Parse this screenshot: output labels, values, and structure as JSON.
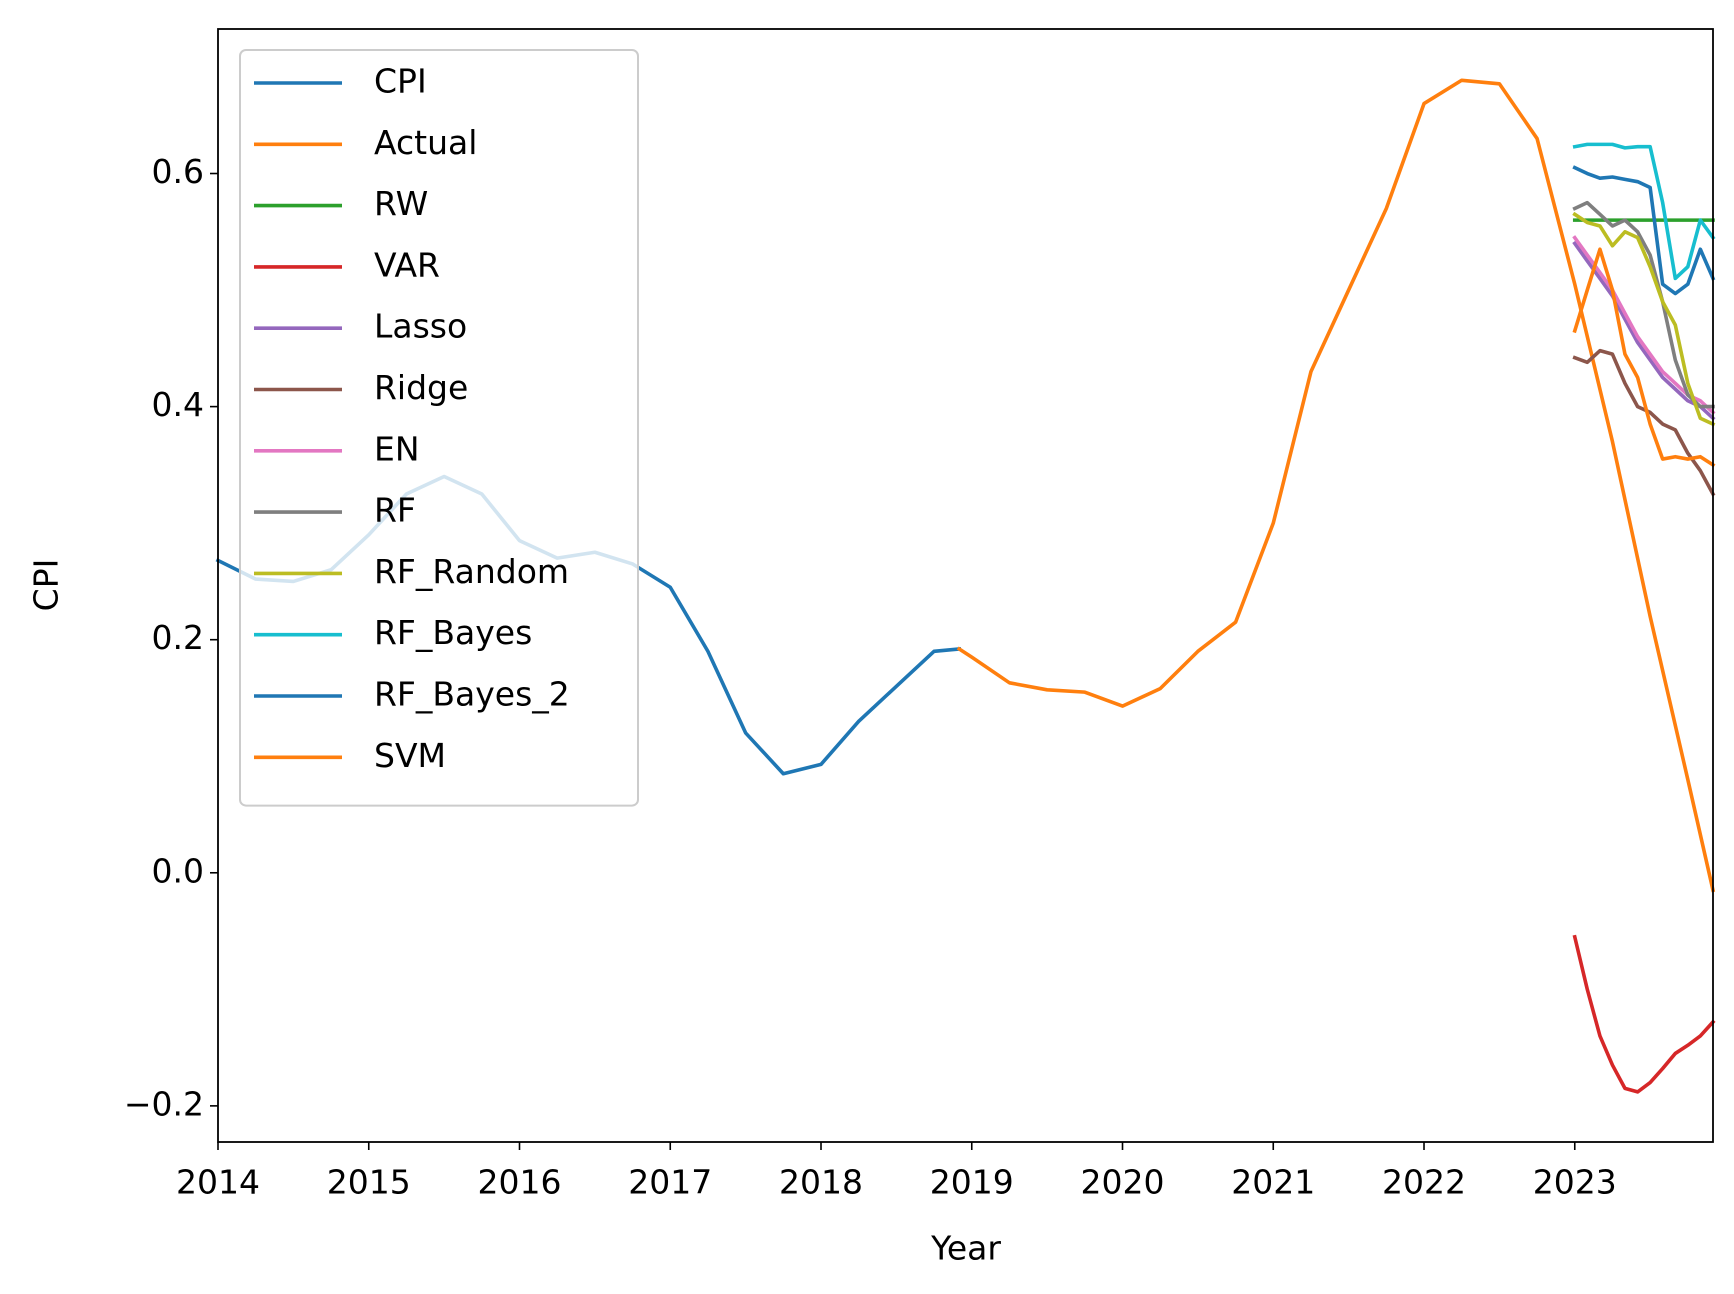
{
  "chart_data": {
    "type": "line",
    "x_label": "Year",
    "y_label": "CPI",
    "xlim": [
      2014,
      2023.917
    ],
    "ylim": [
      -0.231,
      0.724
    ],
    "xticks": [
      2014,
      2015,
      2016,
      2017,
      2018,
      2019,
      2020,
      2021,
      2022,
      2023
    ],
    "yticks": [
      {
        "value": -0.2,
        "label": "−0.2"
      },
      {
        "value": 0,
        "label": "0.0"
      },
      0.2,
      0.4,
      0.6
    ],
    "grid": false,
    "legend": "upper left",
    "series": [
      {
        "name": "CPI",
        "color": "#1f77b4",
        "x": [
          2014,
          2014.25,
          2014.5,
          2014.75,
          2015,
          2015.25,
          2015.5,
          2015.75,
          2016,
          2016.25,
          2016.5,
          2016.75,
          2017,
          2017.25,
          2017.5,
          2017.75,
          2018,
          2018.25,
          2018.5,
          2018.75,
          2018.917
        ],
        "values": [
          0.268,
          0.252,
          0.25,
          0.26,
          0.29,
          0.325,
          0.34,
          0.325,
          0.285,
          0.27,
          0.275,
          0.265,
          0.245,
          0.19,
          0.12,
          0.085,
          0.093,
          0.13,
          0.16,
          0.19,
          0.192
        ]
      },
      {
        "name": "Actual",
        "color": "#ff7f0e",
        "x": [
          2018.917,
          2019,
          2019.25,
          2019.5,
          2019.75,
          2020,
          2020.25,
          2020.5,
          2020.75,
          2021,
          2021.25,
          2021.5,
          2021.75,
          2022,
          2022.25,
          2022.5,
          2022.75,
          2023,
          2023.25,
          2023.5,
          2023.75,
          2023.917
        ],
        "values": [
          0.192,
          0.185,
          0.163,
          0.157,
          0.155,
          0.143,
          0.158,
          0.19,
          0.215,
          0.3,
          0.43,
          0.5,
          0.57,
          0.66,
          0.68,
          0.677,
          0.63,
          0.505,
          0.37,
          0.22,
          0.08,
          -0.015
        ]
      },
      {
        "name": "RW",
        "color": "#2ca02c",
        "x": [
          2023,
          2023.083,
          2023.167,
          2023.25,
          2023.333,
          2023.417,
          2023.5,
          2023.583,
          2023.667,
          2023.75,
          2023.833,
          2023.917
        ],
        "values": [
          0.56,
          0.56,
          0.56,
          0.56,
          0.56,
          0.56,
          0.56,
          0.56,
          0.56,
          0.56,
          0.56,
          0.56
        ]
      },
      {
        "name": "VAR",
        "color": "#d62728",
        "x": [
          2023,
          2023.083,
          2023.167,
          2023.25,
          2023.333,
          2023.417,
          2023.5,
          2023.583,
          2023.667,
          2023.75,
          2023.833,
          2023.917
        ],
        "values": [
          -0.055,
          -0.1,
          -0.14,
          -0.165,
          -0.185,
          -0.188,
          -0.18,
          -0.168,
          -0.155,
          -0.148,
          -0.14,
          -0.128
        ]
      },
      {
        "name": "Lasso",
        "color": "#9467bd",
        "x": [
          2023,
          2023.083,
          2023.167,
          2023.25,
          2023.333,
          2023.417,
          2023.5,
          2023.583,
          2023.667,
          2023.75,
          2023.833,
          2023.917
        ],
        "values": [
          0.54,
          0.525,
          0.51,
          0.495,
          0.475,
          0.455,
          0.44,
          0.425,
          0.415,
          0.405,
          0.4,
          0.39
        ]
      },
      {
        "name": "Ridge",
        "color": "#8c564b",
        "x": [
          2023,
          2023.083,
          2023.167,
          2023.25,
          2023.333,
          2023.417,
          2023.5,
          2023.583,
          2023.667,
          2023.75,
          2023.833,
          2023.917
        ],
        "values": [
          0.442,
          0.438,
          0.448,
          0.445,
          0.42,
          0.4,
          0.395,
          0.385,
          0.38,
          0.36,
          0.345,
          0.325
        ]
      },
      {
        "name": "EN",
        "color": "#e377c2",
        "x": [
          2023,
          2023.083,
          2023.167,
          2023.25,
          2023.333,
          2023.417,
          2023.5,
          2023.583,
          2023.667,
          2023.75,
          2023.833,
          2023.917
        ],
        "values": [
          0.545,
          0.53,
          0.515,
          0.5,
          0.48,
          0.46,
          0.445,
          0.43,
          0.42,
          0.41,
          0.405,
          0.395
        ]
      },
      {
        "name": "RF",
        "color": "#7f7f7f",
        "x": [
          2023,
          2023.083,
          2023.167,
          2023.25,
          2023.333,
          2023.417,
          2023.5,
          2023.583,
          2023.667,
          2023.75,
          2023.833,
          2023.917
        ],
        "values": [
          0.57,
          0.575,
          0.565,
          0.555,
          0.56,
          0.55,
          0.53,
          0.49,
          0.44,
          0.41,
          0.4,
          0.4
        ]
      },
      {
        "name": "RF_Random",
        "color": "#bcbd22",
        "x": [
          2023,
          2023.083,
          2023.167,
          2023.25,
          2023.333,
          2023.417,
          2023.5,
          2023.583,
          2023.667,
          2023.75,
          2023.833,
          2023.917
        ],
        "values": [
          0.565,
          0.558,
          0.555,
          0.538,
          0.55,
          0.545,
          0.52,
          0.49,
          0.47,
          0.42,
          0.39,
          0.385
        ]
      },
      {
        "name": "RF_Bayes",
        "color": "#17becf",
        "x": [
          2023,
          2023.083,
          2023.167,
          2023.25,
          2023.333,
          2023.417,
          2023.5,
          2023.583,
          2023.667,
          2023.75,
          2023.833,
          2023.917
        ],
        "values": [
          0.623,
          0.625,
          0.625,
          0.625,
          0.622,
          0.623,
          0.623,
          0.575,
          0.51,
          0.52,
          0.56,
          0.545
        ]
      },
      {
        "name": "RF_Bayes_2",
        "color": "#1f77b4",
        "x": [
          2023,
          2023.083,
          2023.167,
          2023.25,
          2023.333,
          2023.417,
          2023.5,
          2023.583,
          2023.667,
          2023.75,
          2023.833,
          2023.917
        ],
        "values": [
          0.605,
          0.6,
          0.596,
          0.597,
          0.595,
          0.593,
          0.588,
          0.505,
          0.497,
          0.505,
          0.535,
          0.51
        ]
      },
      {
        "name": "SVM",
        "color": "#ff7f0e",
        "x": [
          2023,
          2023.083,
          2023.167,
          2023.25,
          2023.333,
          2023.417,
          2023.5,
          2023.583,
          2023.667,
          2023.75,
          2023.833,
          2023.917
        ],
        "values": [
          0.465,
          0.5,
          0.535,
          0.5,
          0.445,
          0.425,
          0.385,
          0.355,
          0.357,
          0.355,
          0.357,
          0.35
        ]
      }
    ]
  }
}
